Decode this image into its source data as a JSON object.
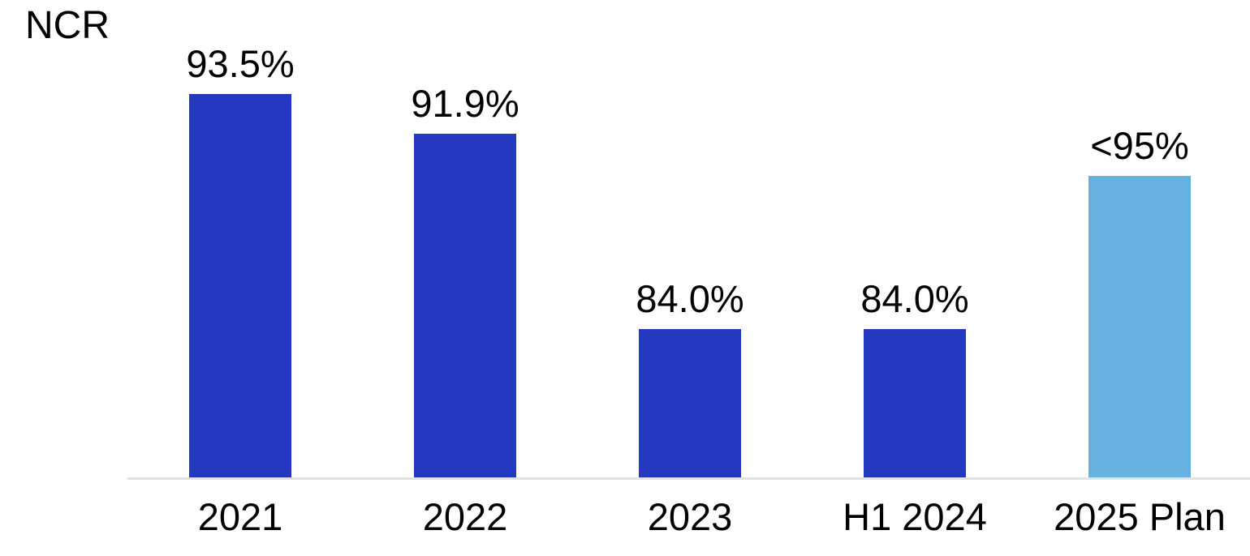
{
  "chart_data": {
    "type": "bar",
    "title": "NCR",
    "categories": [
      "2021",
      "2022",
      "2023",
      "H1 2024",
      "2025 Plan"
    ],
    "values": [
      93.5,
      91.9,
      84.0,
      84.0,
      90.2
    ],
    "data_labels": [
      "93.5%",
      "91.9%",
      "84.0%",
      "84.0%",
      "<95%"
    ],
    "series": [
      {
        "name": "NCR",
        "values": [
          93.5,
          91.9,
          84.0,
          84.0,
          90.2
        ]
      }
    ],
    "bar_colors": [
      "#2539c0",
      "#2539c0",
      "#2539c0",
      "#2539c0",
      "#67b1e1"
    ],
    "colors": {
      "bar_primary": "#2539c0",
      "bar_plan": "#67b1e1",
      "axis_line": "#e2e2e2",
      "text": "#000000",
      "background": "#ffffff"
    },
    "xlabel": "",
    "ylabel": "",
    "ylim": [
      78,
      95.5
    ],
    "grid": false,
    "legend_position": "none"
  }
}
